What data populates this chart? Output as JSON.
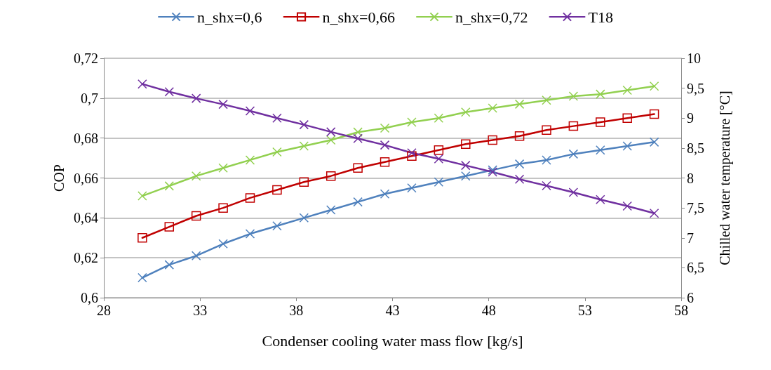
{
  "chart_data": {
    "type": "line",
    "xlabel": "Condenser cooling water mass flow [kg/s]",
    "ylabel": "COP",
    "y2label": "Chilled water temperature [°C]",
    "x": [
      30,
      31.4,
      32.8,
      34.2,
      35.6,
      37,
      38.4,
      39.8,
      41.2,
      42.6,
      44,
      45.4,
      46.8,
      48.2,
      49.6,
      51,
      52.4,
      53.8,
      55.2,
      56.6
    ],
    "series": [
      {
        "name": "n_shx=0,6",
        "color": "#4f81bd",
        "marker": "cross",
        "values": [
          0.61,
          0.6165,
          0.621,
          0.627,
          0.632,
          0.636,
          0.64,
          0.644,
          0.648,
          0.652,
          0.655,
          0.658,
          0.661,
          0.664,
          0.667,
          0.669,
          0.672,
          0.674,
          0.676,
          0.678
        ]
      },
      {
        "name": "n_shx=0,66",
        "color": "#c00000",
        "marker": "square",
        "values": [
          0.63,
          0.6355,
          0.641,
          0.645,
          0.65,
          0.654,
          0.658,
          0.661,
          0.665,
          0.668,
          0.671,
          0.674,
          0.677,
          0.679,
          0.681,
          0.684,
          0.686,
          0.688,
          0.69,
          0.692
        ]
      },
      {
        "name": "n_shx=0,72",
        "color": "#92d050",
        "marker": "cross",
        "values": [
          0.651,
          0.656,
          0.661,
          0.665,
          0.669,
          0.673,
          0.676,
          0.679,
          0.683,
          0.685,
          0.688,
          0.69,
          0.693,
          0.695,
          0.697,
          0.699,
          0.701,
          0.702,
          0.704,
          0.706
        ]
      },
      {
        "name": "T18",
        "color": "#7030a0",
        "marker": "cross",
        "axis": "y2",
        "values": [
          9.57,
          9.44,
          9.33,
          9.23,
          9.12,
          9.0,
          8.89,
          8.77,
          8.66,
          8.55,
          8.42,
          8.32,
          8.21,
          8.1,
          7.98,
          7.87,
          7.76,
          7.64,
          7.53,
          7.41
        ]
      }
    ],
    "xlim": [
      28,
      58
    ],
    "xticks": [
      28,
      33,
      38,
      43,
      48,
      53,
      58
    ],
    "ylim": [
      0.6,
      0.72
    ],
    "yticks": [
      {
        "value": 0.6,
        "label": "0,6"
      },
      {
        "value": 0.62,
        "label": "0,62"
      },
      {
        "value": 0.64,
        "label": "0,64"
      },
      {
        "value": 0.66,
        "label": "0,66"
      },
      {
        "value": 0.68,
        "label": "0,68"
      },
      {
        "value": 0.7,
        "label": "0,7"
      },
      {
        "value": 0.72,
        "label": "0,72"
      }
    ],
    "y2lim": [
      6,
      10
    ],
    "y2ticks": [
      6,
      {
        "value": 6.5,
        "label": "6,5"
      },
      7,
      {
        "value": 7.5,
        "label": "7,5"
      },
      8,
      {
        "value": 8.5,
        "label": "8,5"
      },
      9,
      {
        "value": 9.5,
        "label": "9,5"
      },
      10
    ],
    "grid": "y",
    "legend": "top",
    "line_style": "solid"
  }
}
